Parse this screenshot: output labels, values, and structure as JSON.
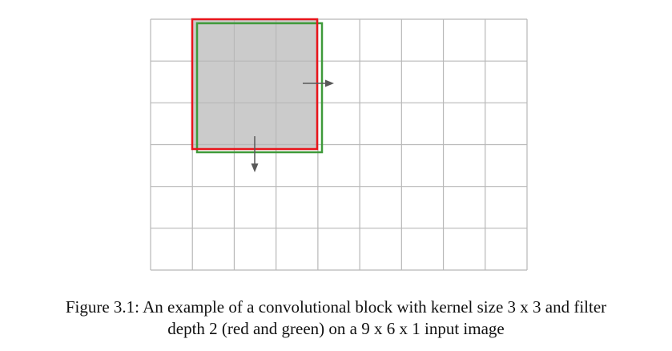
{
  "figure": {
    "grid": {
      "columns": 9,
      "rows": 6
    },
    "kernel": {
      "width": 3,
      "height": 3
    },
    "filters": [
      {
        "color": "red",
        "stroke": "#e8141b"
      },
      {
        "color": "green",
        "stroke": "#3f9a3a"
      }
    ],
    "kernel_fill": "#cbcbcb",
    "grid_line_color": "#b8b8b8",
    "arrow_color": "#595959",
    "arrows": [
      "arrow-right-icon",
      "arrow-down-icon"
    ]
  },
  "caption": {
    "line1": "Figure 3.1: An example of a convolutional block with kernel size 3 x 3 and filter",
    "line2": "depth 2 (red and green) on a 9 x 6 x 1 input image"
  }
}
